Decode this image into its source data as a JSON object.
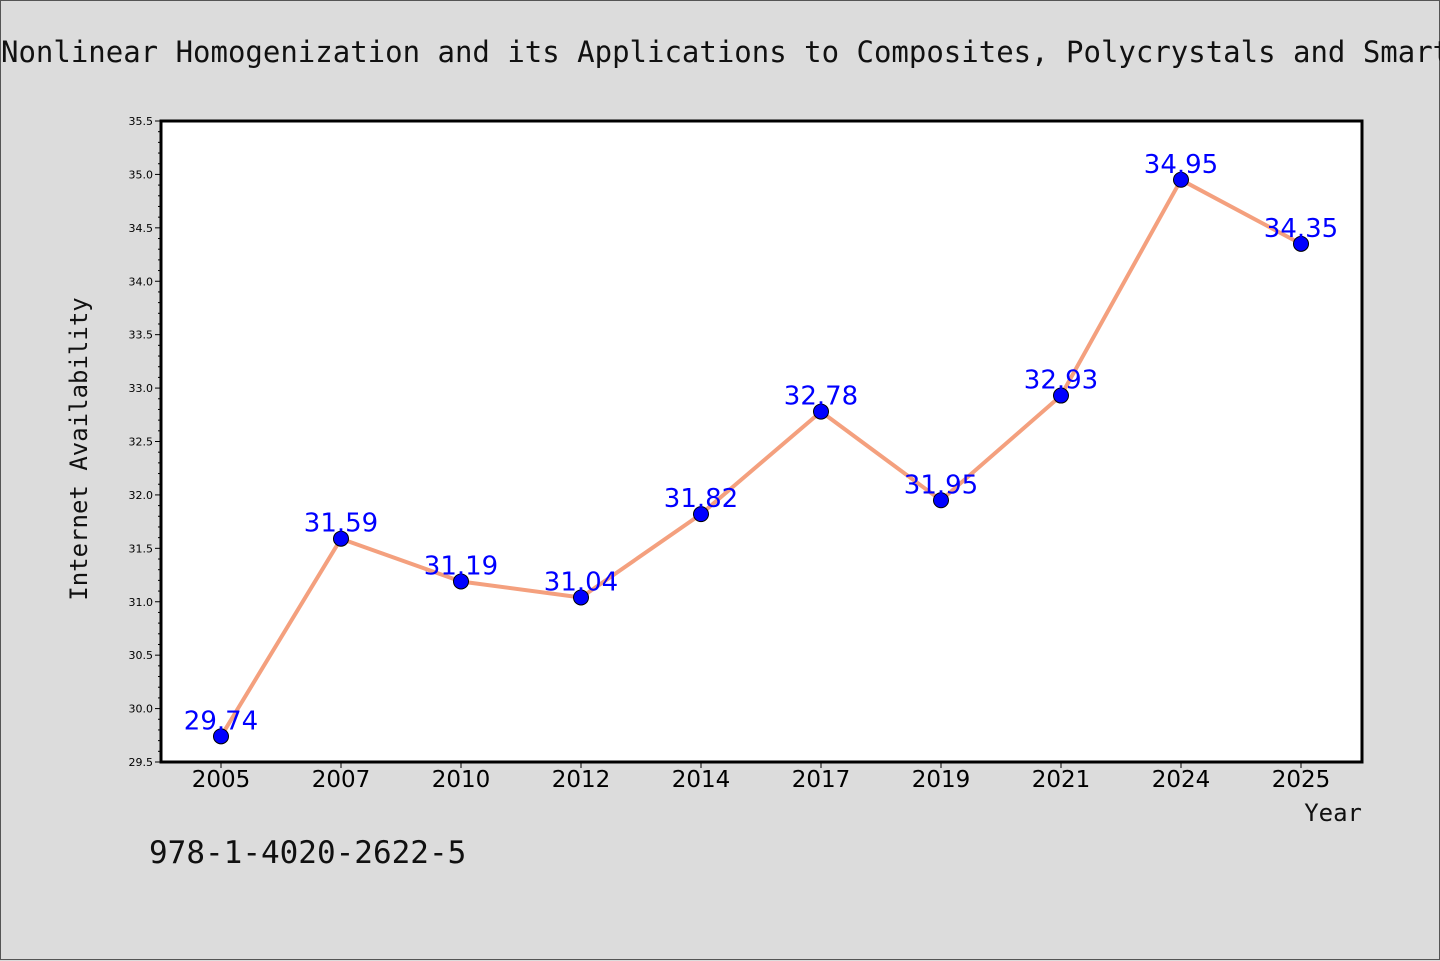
{
  "chart_data": {
    "type": "line",
    "title": "Nonlinear Homogenization and its Applications to Composites, Polycrystals and Smart Materials",
    "xlabel": "Year",
    "ylabel": "Internet Availability",
    "categories": [
      "2005",
      "2007",
      "2010",
      "2012",
      "2014",
      "2017",
      "2019",
      "2021",
      "2024",
      "2025"
    ],
    "series": [
      {
        "values": [
          29.74,
          31.59,
          31.19,
          31.04,
          31.82,
          32.78,
          31.95,
          32.93,
          34.95,
          34.35
        ]
      }
    ],
    "data_labels": [
      "29.74",
      "31.59",
      "31.19",
      "31.04",
      "31.82",
      "32.78",
      "31.95",
      "32.93",
      "34.95",
      "34.35"
    ],
    "ylim": [
      29.5,
      35.5
    ],
    "yticks": [
      "29.5",
      "30.0",
      "30.5",
      "31.0",
      "31.5",
      "32.0",
      "32.5",
      "33.0",
      "33.5",
      "34.0",
      "34.5",
      "35.0",
      "35.5"
    ],
    "grid": false,
    "legend": "none",
    "colors": {
      "line": "#f4a07e",
      "marker": "#0000ff",
      "label": "#0000ff",
      "background": "#dcdcdc",
      "plot_bg": "#ffffff"
    }
  },
  "footer": {
    "isbn": "978-1-4020-2622-5"
  }
}
